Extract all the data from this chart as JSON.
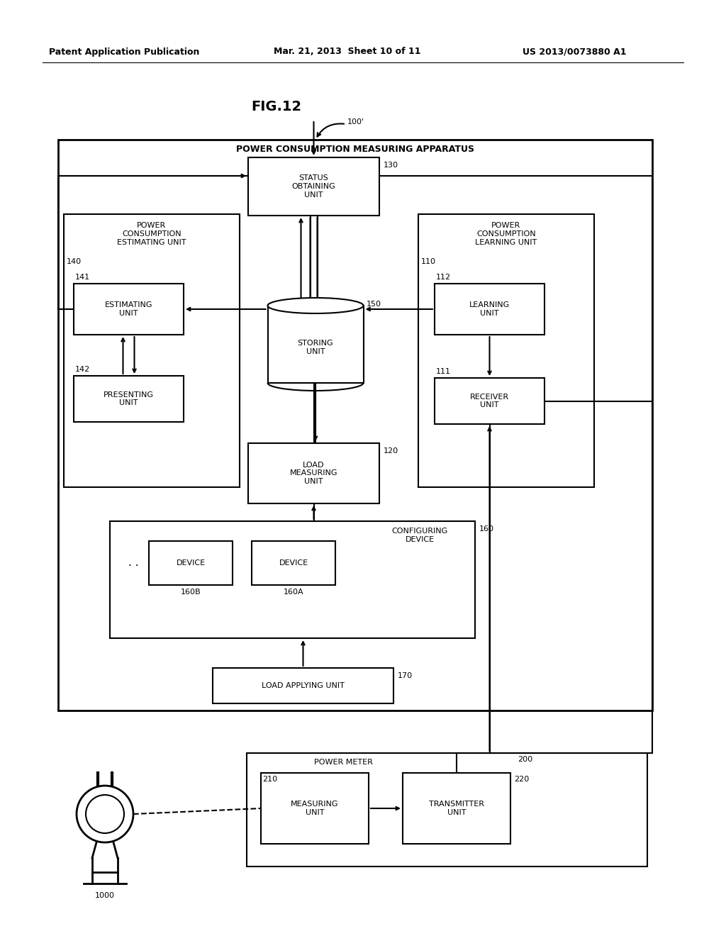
{
  "background": "#ffffff",
  "header_left": "Patent Application Publication",
  "header_mid": "Mar. 21, 2013  Sheet 10 of 11",
  "header_right": "US 2013/0073880 A1",
  "fig_title": "FIG.12",
  "label_100": "100'",
  "label_130": "130",
  "label_140": "140",
  "label_110": "110",
  "label_141": "141",
  "label_142": "142",
  "label_150": "150",
  "label_112": "112",
  "label_111": "111",
  "label_120": "120",
  "label_160": "160",
  "label_160A": "160A",
  "label_160B": "160B",
  "label_170": "170",
  "label_200": "200",
  "label_210": "210",
  "label_220": "220",
  "label_1000": "1000",
  "text_status": "STATUS\nOBTAINING\nUNIT",
  "text_power_est": "POWER\nCONSUMPTION\nESTIMATING UNIT",
  "text_power_learn": "POWER\nCONSUMPTION\nLEARNING UNIT",
  "text_estimating": "ESTIMATING\nUNIT",
  "text_presenting": "PRESENTING\nUNIT",
  "text_storing": "STORING\nUNIT",
  "text_learning": "LEARNING\nUNIT",
  "text_receiver": "RECEIVER\nUNIT",
  "text_load_meas": "LOAD\nMEASURING\nUNIT",
  "text_config": "CONFIGURING\nDEVICE",
  "text_device": "DEVICE",
  "text_load_apply": "LOAD APPLYING UNIT",
  "text_power_meter": "POWER METER",
  "text_measuring": "MEASURING\nUNIT",
  "text_transmitter": "TRANSMITTER\nUNIT",
  "text_apparatus": "POWER CONSUMPTION MEASURING APPARATUS"
}
